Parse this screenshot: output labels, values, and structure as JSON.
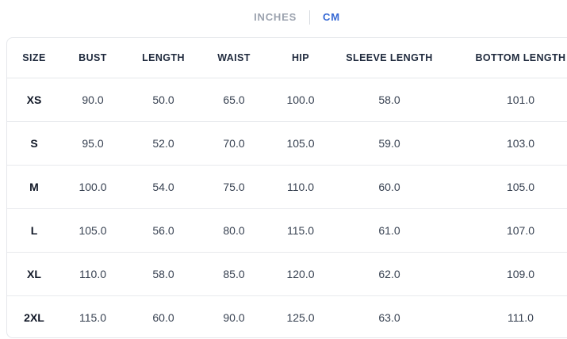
{
  "tabs": {
    "inches_label": "INCHES",
    "cm_label": "CM",
    "active": "CM"
  },
  "size_chart": {
    "columns": [
      "SIZE",
      "BUST",
      "LENGTH",
      "WAIST",
      "HIP",
      "SLEEVE LENGTH",
      "BOTTOM LENGTH"
    ],
    "rows": [
      {
        "size": "XS",
        "values": [
          "90.0",
          "50.0",
          "65.0",
          "100.0",
          "58.0",
          "101.0"
        ]
      },
      {
        "size": "S",
        "values": [
          "95.0",
          "52.0",
          "70.0",
          "105.0",
          "59.0",
          "103.0"
        ]
      },
      {
        "size": "M",
        "values": [
          "100.0",
          "54.0",
          "75.0",
          "110.0",
          "60.0",
          "105.0"
        ]
      },
      {
        "size": "L",
        "values": [
          "105.0",
          "56.0",
          "80.0",
          "115.0",
          "61.0",
          "107.0"
        ]
      },
      {
        "size": "XL",
        "values": [
          "110.0",
          "58.0",
          "85.0",
          "120.0",
          "62.0",
          "109.0"
        ]
      },
      {
        "size": "2XL",
        "values": [
          "115.0",
          "60.0",
          "90.0",
          "125.0",
          "63.0",
          "111.0"
        ]
      }
    ]
  },
  "colors": {
    "accent_blue": "#3568d4",
    "inactive_tab_gray": "#9ca3af",
    "border_gray": "#e5e7eb",
    "header_text": "#1f2a3d",
    "cell_text": "#374151"
  }
}
